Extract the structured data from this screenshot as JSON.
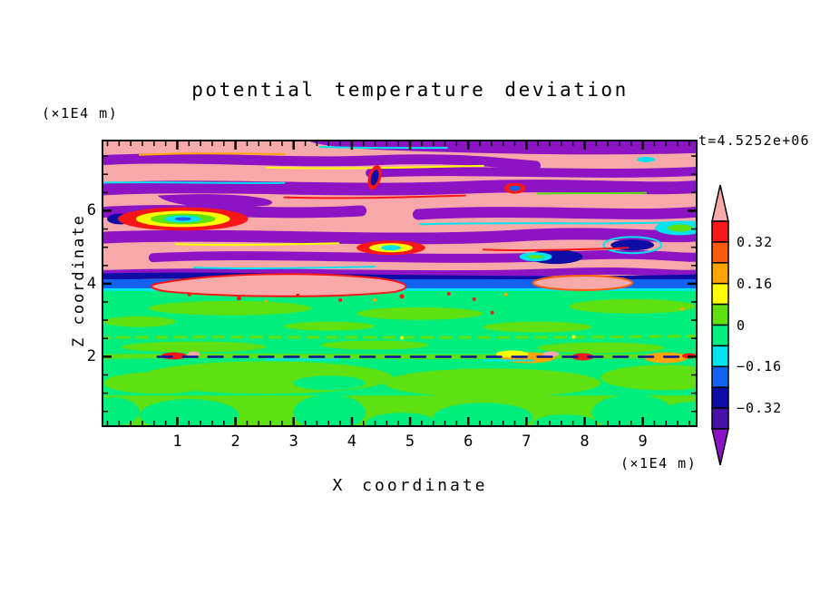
{
  "title": "potential temperature deviation",
  "time_label": "t=4.5252e+06",
  "palette": {
    "pink_over": "#f7a9a9",
    "red": "#f91616",
    "orange_red": "#fb5a0c",
    "orange": "#ffa400",
    "yellow": "#ffff00",
    "chartreuse": "#5fe010",
    "spring_green": "#00ee7e",
    "cyan": "#00e4ee",
    "blue": "#1262f2",
    "navy": "#0d0da6",
    "indigo": "#4812a8",
    "purple_under": "#8c14c4"
  },
  "axes": {
    "x": {
      "label": "X coordinate",
      "unit": "(×1E4 m)",
      "major_ticks": [
        1,
        2,
        3,
        4,
        5,
        6,
        7,
        8,
        9
      ],
      "minor_step": 0.2,
      "range": [
        -0.27,
        9.91
      ]
    },
    "z": {
      "label": "Z coordinate",
      "unit": "(×1E4 m)",
      "major_ticks": [
        2,
        4,
        6
      ],
      "minor_step": 0.5,
      "range": [
        0.12,
        7.9
      ]
    }
  },
  "colorbar": {
    "over_arrow_color": "#f7a9a9",
    "under_arrow_color": "#8c14c4",
    "segments": [
      {
        "color": "#f91616",
        "from": 0.32,
        "to": 0.4
      },
      {
        "color": "#fb5a0c",
        "from": 0.24,
        "to": 0.32
      },
      {
        "color": "#ffa400",
        "from": 0.16,
        "to": 0.24
      },
      {
        "color": "#ffff00",
        "from": 0.08,
        "to": 0.16
      },
      {
        "color": "#5fe010",
        "from": 0,
        "to": 0.08
      },
      {
        "color": "#00ee7e",
        "from": -0.08,
        "to": 0
      },
      {
        "color": "#00e4ee",
        "from": -0.16,
        "to": -0.08
      },
      {
        "color": "#1262f2",
        "from": -0.24,
        "to": -0.16
      },
      {
        "color": "#0d0da6",
        "from": -0.32,
        "to": -0.24
      },
      {
        "color": "#4812a8",
        "from": -0.4,
        "to": -0.32
      }
    ],
    "boundary_labels": [
      {
        "text": "0.32",
        "boundary_index": 1
      },
      {
        "text": "0.16",
        "boundary_index": 3
      },
      {
        "text": "0",
        "boundary_index": 5
      },
      {
        "text": "−0.16",
        "boundary_index": 7
      },
      {
        "text": "−0.32",
        "boundary_index": 9
      }
    ]
  },
  "chart_data": {
    "type": "heatmap",
    "title": "potential temperature deviation",
    "xlabel": "X coordinate",
    "ylabel": "Z coordinate",
    "x_unit": "×1E4 m",
    "z_unit": "×1E4 m",
    "x_range": [
      -0.27,
      9.91
    ],
    "z_range": [
      0.12,
      7.9
    ],
    "time_annotation": "t=4.5252e+06",
    "contour_interval": 0.08,
    "levels": [
      -0.4,
      -0.32,
      -0.24,
      -0.16,
      -0.08,
      0,
      0.08,
      0.16,
      0.24,
      0.32,
      0.4
    ],
    "level_colors_low_to_high": [
      "#8c14c4",
      "#4812a8",
      "#0d0da6",
      "#1262f2",
      "#00e4ee",
      "#00ee7e",
      "#5fe010",
      "#ffff00",
      "#ffa400",
      "#fb5a0c",
      "#f91616",
      "#f7a9a9"
    ],
    "legend_position": "right",
    "grid": false,
    "field_description": [
      "Upper region z≈4.1–7.9: alternating wavy horizontal bands of over-scale pink (>0.4) and under-scale purple (<−0.4) with thin rainbow fringes (cyan/yellow/red/green) along band edges",
      "Sharp interface at z≈4: full-width blue band (−0.24..−0.16) topped by navy, with a cyan line beneath, and pink tongues with red/orange rims intruding near x≈0.8–3.3 and x≈5.8–7.2",
      "Middle region z≈2–4: mostly spring green (−0.08..0) with elongated chartreuse (0..0.08) streaks and sparse red/orange specks",
      "Thin mixing line at z≈2: navy dashes with red/orange/yellow patches along a chartreuse strip",
      "Lower region z<2: interleaved spring-green and chartreuse convective blobs"
    ]
  }
}
